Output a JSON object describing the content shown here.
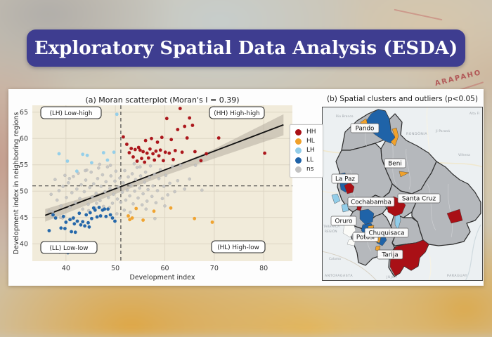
{
  "banner": {
    "title": "Exploratory Spatial Data Analysis (ESDA)",
    "bg_color": "#3e3d90",
    "text_color": "#ffffff"
  },
  "background_decor": {
    "map_text": "ARAPAHO"
  },
  "cluster_legend": {
    "items": [
      {
        "label": "HH",
        "color": "#a91016"
      },
      {
        "label": "HL",
        "color": "#f0a12b"
      },
      {
        "label": "LH",
        "color": "#92cde9"
      },
      {
        "label": "LL",
        "color": "#1f63a8"
      },
      {
        "label": "ns",
        "color": "#c2c2c2"
      }
    ]
  },
  "colors": {
    "plot_bg": "#f1ebda",
    "grid": "#ddd6c4",
    "trend_line": "#111111",
    "ci_band": "#b4ada0",
    "dashed": "#3a3a3a"
  },
  "chart_data": [
    {
      "type": "scatter",
      "title": "(a) Moran scatterplot (Moran's I = 0.39)",
      "xlabel": "Development index",
      "ylabel": "Development index in neighboring regions",
      "xlim": [
        33.2,
        85.8
      ],
      "ylim": [
        36.7,
        66.3
      ],
      "x_ticks": [
        40,
        50,
        60,
        70,
        80
      ],
      "y_ticks": [
        40,
        45,
        50,
        55,
        60,
        65
      ],
      "mean_x": 51.1,
      "mean_y": 51.0,
      "morans_i": 0.39,
      "quadrants": {
        "top_left": "(LH) Low-high",
        "top_right": "(HH) High-high",
        "bottom_left": "(LL) Low-low",
        "bottom_right": "(HL) High-low"
      },
      "trend": {
        "line": [
          [
            35.8,
            45.4
          ],
          [
            84.0,
            62.6
          ]
        ],
        "band_upper": [
          [
            35.8,
            46.6
          ],
          [
            47.0,
            49.7
          ],
          [
            58.0,
            53.2
          ],
          [
            70.0,
            58.0
          ],
          [
            84.0,
            64.6
          ]
        ],
        "band_lower": [
          [
            35.8,
            44.2
          ],
          [
            47.0,
            48.4
          ],
          [
            58.0,
            52.3
          ],
          [
            70.0,
            56.2
          ],
          [
            84.0,
            60.6
          ]
        ]
      },
      "series": [
        {
          "name": "HH",
          "color": "#a91016",
          "points": [
            [
              51.6,
              60.3
            ],
            [
              52.3,
              58.9
            ],
            [
              52.8,
              57.3
            ],
            [
              53.2,
              58.1
            ],
            [
              53.6,
              56.5
            ],
            [
              54.0,
              57.9
            ],
            [
              54.4,
              55.7
            ],
            [
              54.7,
              58.3
            ],
            [
              55.0,
              57.8
            ],
            [
              55.3,
              56.2
            ],
            [
              55.6,
              57.5
            ],
            [
              55.9,
              55.5
            ],
            [
              56.1,
              59.6
            ],
            [
              56.4,
              57.2
            ],
            [
              56.7,
              56.3
            ],
            [
              57.0,
              58.0
            ],
            [
              57.3,
              60.0
            ],
            [
              57.6,
              57.1
            ],
            [
              57.9,
              55.9
            ],
            [
              58.2,
              57.6
            ],
            [
              58.5,
              59.3
            ],
            [
              58.8,
              56.7
            ],
            [
              59.1,
              57.8
            ],
            [
              59.4,
              60.2
            ],
            [
              59.7,
              55.8
            ],
            [
              60.1,
              57.4
            ],
            [
              60.4,
              63.8
            ],
            [
              60.9,
              57.2
            ],
            [
              61.3,
              59.8
            ],
            [
              61.7,
              56.0
            ],
            [
              62.1,
              57.7
            ],
            [
              62.6,
              61.7
            ],
            [
              63.1,
              65.7
            ],
            [
              63.5,
              57.4
            ],
            [
              64.0,
              62.3
            ],
            [
              64.5,
              60.1
            ],
            [
              65.0,
              63.9
            ],
            [
              65.6,
              62.5
            ],
            [
              66.1,
              57.5
            ],
            [
              67.3,
              55.8
            ],
            [
              68.4,
              57.1
            ],
            [
              70.9,
              60.1
            ],
            [
              80.2,
              57.2
            ]
          ]
        },
        {
          "name": "HL",
          "color": "#f0a12b",
          "points": [
            [
              52.6,
              45.3
            ],
            [
              52.9,
              44.6
            ],
            [
              53.4,
              44.9
            ],
            [
              54.2,
              46.7
            ],
            [
              55.6,
              44.5
            ],
            [
              57.8,
              46.2
            ],
            [
              61.2,
              46.8
            ],
            [
              66.0,
              44.8
            ],
            [
              69.6,
              44.1
            ]
          ]
        },
        {
          "name": "LH",
          "color": "#92cde9",
          "points": [
            [
              38.6,
              57.1
            ],
            [
              40.3,
              55.7
            ],
            [
              42.2,
              53.8
            ],
            [
              43.4,
              57.0
            ],
            [
              44.3,
              56.8
            ],
            [
              45.2,
              55.4
            ],
            [
              47.6,
              57.3
            ],
            [
              48.4,
              55.9
            ],
            [
              49.7,
              57.4
            ],
            [
              50.3,
              64.6
            ]
          ]
        },
        {
          "name": "LL",
          "color": "#1f63a8",
          "points": [
            [
              36.6,
              42.5
            ],
            [
              37.4,
              45.5
            ],
            [
              37.9,
              44.9
            ],
            [
              38.7,
              38.4
            ],
            [
              39.0,
              43.0
            ],
            [
              39.5,
              45.2
            ],
            [
              39.8,
              42.9
            ],
            [
              40.0,
              44.1
            ],
            [
              40.4,
              38.3
            ],
            [
              40.8,
              44.6
            ],
            [
              41.1,
              42.3
            ],
            [
              41.5,
              44.9
            ],
            [
              41.7,
              43.8
            ],
            [
              41.9,
              42.2
            ],
            [
              42.3,
              44.3
            ],
            [
              42.7,
              45.8
            ],
            [
              43.0,
              43.6
            ],
            [
              43.4,
              44.2
            ],
            [
              43.8,
              43.4
            ],
            [
              44.1,
              45.5
            ],
            [
              44.5,
              44.0
            ],
            [
              44.7,
              43.2
            ],
            [
              44.9,
              45.9
            ],
            [
              45.2,
              44.8
            ],
            [
              45.6,
              46.8
            ],
            [
              45.9,
              46.4
            ],
            [
              46.3,
              45.1
            ],
            [
              46.7,
              46.9
            ],
            [
              47.0,
              45.3
            ],
            [
              47.4,
              46.4
            ],
            [
              47.8,
              46.6
            ],
            [
              48.1,
              45.2
            ],
            [
              48.5,
              46.6
            ],
            [
              49.0,
              45.5
            ],
            [
              49.4,
              44.9
            ],
            [
              49.9,
              44.3
            ]
          ]
        },
        {
          "name": "ns",
          "color": "#c2c2c2",
          "points": [
            [
              37.0,
              49.4
            ],
            [
              37.3,
              46.1
            ],
            [
              37.8,
              52.2
            ],
            [
              38.2,
              48.3
            ],
            [
              38.6,
              50.1
            ],
            [
              39.0,
              47.2
            ],
            [
              39.4,
              50.9
            ],
            [
              39.8,
              53.0
            ],
            [
              40.1,
              48.8
            ],
            [
              40.5,
              51.6
            ],
            [
              40.8,
              46.9
            ],
            [
              41.2,
              49.7
            ],
            [
              41.5,
              52.8
            ],
            [
              41.9,
              47.8
            ],
            [
              42.2,
              50.4
            ],
            [
              42.5,
              53.4
            ],
            [
              42.8,
              48.6
            ],
            [
              43.1,
              51.2
            ],
            [
              43.4,
              46.6
            ],
            [
              43.7,
              49.9
            ],
            [
              44.0,
              52.1
            ],
            [
              44.2,
              54.0
            ],
            [
              44.5,
              47.5
            ],
            [
              44.8,
              50.7
            ],
            [
              45.1,
              53.6
            ],
            [
              45.3,
              48.9
            ],
            [
              45.6,
              51.4
            ],
            [
              45.9,
              46.8
            ],
            [
              46.1,
              49.6
            ],
            [
              46.4,
              52.4
            ],
            [
              46.6,
              54.4
            ],
            [
              46.9,
              48.2
            ],
            [
              47.1,
              50.9
            ],
            [
              47.4,
              53.1
            ],
            [
              47.6,
              47.1
            ],
            [
              47.9,
              49.9
            ],
            [
              48.1,
              51.8
            ],
            [
              48.4,
              54.6
            ],
            [
              48.6,
              48.8
            ],
            [
              48.9,
              50.5
            ],
            [
              49.1,
              52.9
            ],
            [
              49.4,
              47.7
            ],
            [
              49.6,
              49.4
            ],
            [
              49.9,
              51.9
            ],
            [
              50.1,
              53.8
            ],
            [
              50.4,
              48.5
            ],
            [
              50.6,
              50.8
            ],
            [
              50.9,
              52.5
            ],
            [
              51.1,
              47.9
            ],
            [
              51.4,
              49.8
            ],
            [
              51.6,
              51.6
            ],
            [
              51.9,
              53.9
            ],
            [
              52.1,
              48.3
            ],
            [
              52.4,
              50.2
            ],
            [
              52.6,
              52.7
            ],
            [
              52.9,
              49.1
            ],
            [
              53.1,
              51.1
            ],
            [
              53.4,
              53.3
            ],
            [
              53.6,
              47.6
            ],
            [
              53.9,
              50.0
            ],
            [
              54.1,
              52.2
            ],
            [
              54.4,
              54.5
            ],
            [
              54.6,
              48.7
            ],
            [
              54.9,
              50.6
            ],
            [
              55.1,
              52.9
            ],
            [
              55.4,
              47.4
            ],
            [
              55.6,
              49.5
            ],
            [
              55.9,
              51.7
            ],
            [
              56.1,
              53.6
            ],
            [
              56.4,
              48.1
            ],
            [
              56.6,
              50.3
            ],
            [
              56.9,
              52.6
            ],
            [
              57.1,
              54.8
            ],
            [
              57.4,
              49.0
            ],
            [
              57.6,
              51.0
            ],
            [
              57.9,
              53.2
            ],
            [
              58.2,
              47.8
            ],
            [
              58.5,
              50.1
            ],
            [
              58.8,
              52.4
            ],
            [
              59.1,
              54.1
            ],
            [
              59.5,
              48.6
            ],
            [
              59.8,
              50.9
            ],
            [
              60.2,
              53.0
            ],
            [
              60.6,
              49.3
            ],
            [
              61.0,
              51.5
            ],
            [
              61.5,
              54.7
            ],
            [
              62.0,
              49.9
            ],
            [
              62.6,
              52.0
            ],
            [
              63.2,
              54.9
            ],
            [
              64.0,
              50.4
            ],
            [
              65.0,
              52.3
            ],
            [
              66.2,
              54.9
            ],
            [
              67.5,
              50.2
            ],
            [
              38.9,
              45.0
            ],
            [
              41.0,
              44.6
            ],
            [
              36.6,
              46.2
            ],
            [
              55.0,
              54.6
            ],
            [
              58.0,
              44.8
            ],
            [
              60.0,
              47.2
            ],
            [
              43.9,
              53.9
            ],
            [
              40.7,
              52.4
            ],
            [
              39.3,
              44.9
            ],
            [
              37.2,
              45.3
            ],
            [
              46.2,
              47.7
            ],
            [
              44.6,
              46.3
            ],
            [
              48.8,
              46.9
            ],
            [
              51.8,
              46.4
            ],
            [
              53.0,
              46.0
            ],
            [
              56.2,
              46.6
            ],
            [
              50.3,
              45.7
            ],
            [
              49.0,
              54.9
            ],
            [
              46.8,
              55.1
            ],
            [
              53.8,
              55.2
            ]
          ]
        }
      ]
    },
    {
      "type": "choropleth-map",
      "title": "(b) Spatial clusters and outliers (p<0.05)",
      "region_labels": [
        "Pando",
        "Beni",
        "La Paz",
        "Cochabamba",
        "Santa Cruz",
        "Oruro",
        "Potosí",
        "Chuquisaca",
        "Tarija"
      ],
      "basemap_labels": [
        "Rio Branco",
        "RONDÔNIA",
        "Ji-Paraná",
        "Vilhena",
        "Alta Fl",
        "TARAPACÁ",
        "REGIÓN",
        "Calama",
        "ANTOFAGASTA",
        "JUJUY",
        "PARAGUAY"
      ],
      "cluster_colors": {
        "HH": "#a91016",
        "HL": "#f0a12b",
        "LH": "#92cde9",
        "LL": "#1f63a8",
        "ns": "#b5b8bc"
      },
      "region_clusters": {
        "Pando": [
          "LL",
          "HL"
        ],
        "Beni": [
          "LL",
          "HL"
        ],
        "La Paz": [
          "LL",
          "LH",
          "HH"
        ],
        "Cochabamba": [
          "HH",
          "LL"
        ],
        "Santa Cruz": [
          "HH",
          "LH"
        ],
        "Oruro": [
          "ns"
        ],
        "Potosí": [
          "LL",
          "HL"
        ],
        "Chuquisaca": [
          "LL",
          "HL",
          "LH"
        ],
        "Tarija": [
          "HH",
          "LH"
        ]
      }
    }
  ]
}
